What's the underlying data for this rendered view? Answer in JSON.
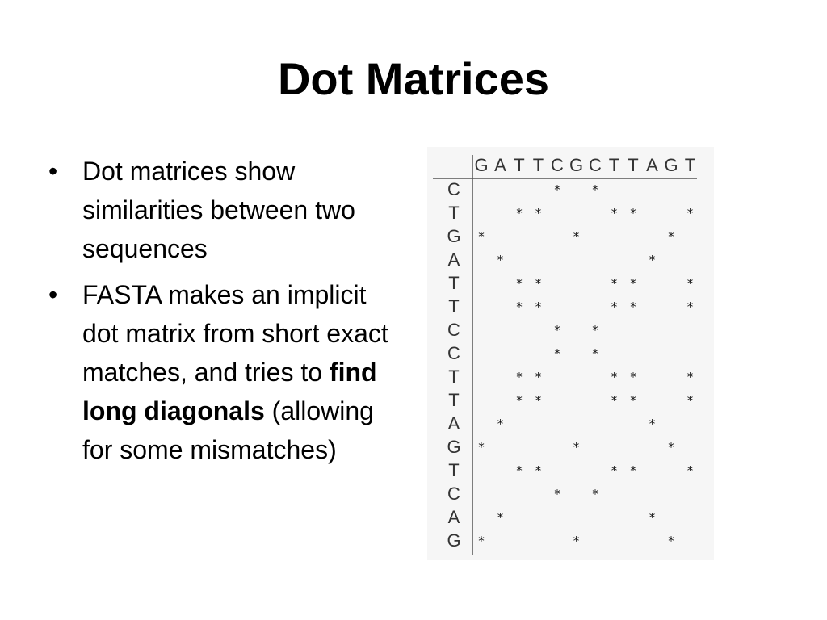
{
  "slide": {
    "title": "Dot Matrices",
    "bullets": [
      {
        "bullet": "•",
        "text": "Dot matrices show similarities between two sequences"
      },
      {
        "bullet": "•",
        "before": "FASTA makes an implicit dot matrix from short exact matches, and tries to ",
        "bold": "find long diagonals",
        "after": " (allowing for some mismatches)"
      }
    ]
  },
  "dot_matrix": {
    "top_sequence": [
      "G",
      "A",
      "T",
      "T",
      "C",
      "G",
      "C",
      "T",
      "T",
      "A",
      "G",
      "T"
    ],
    "side_sequence": [
      "C",
      "T",
      "G",
      "A",
      "T",
      "T",
      "C",
      "C",
      "T",
      "T",
      "A",
      "G",
      "T",
      "C",
      "A",
      "G"
    ],
    "dot_symbol": "*"
  }
}
